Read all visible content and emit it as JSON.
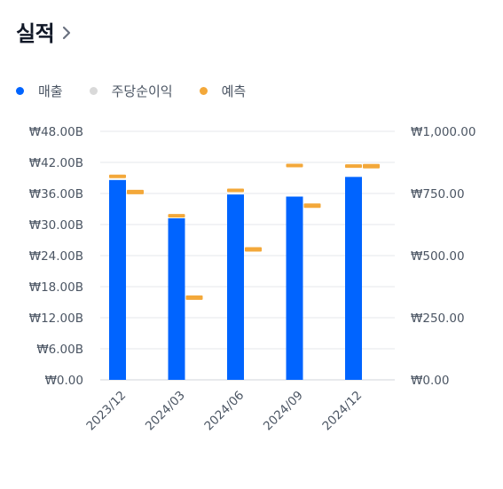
{
  "header": {
    "title": "실적"
  },
  "legend": [
    {
      "label": "매출",
      "color": "#0064ff"
    },
    {
      "label": "주당순이익",
      "color": "#d9d9d9"
    },
    {
      "label": "예측",
      "color": "#f3a83a"
    }
  ],
  "chart_data": {
    "type": "bar",
    "title": "",
    "categories": [
      "2023/12",
      "2024/03",
      "2024/06",
      "2024/09",
      "2024/12"
    ],
    "series": [
      {
        "name": "매출",
        "axis": "left",
        "values": [
          38.6,
          31.2,
          35.8,
          35.4,
          39.2
        ]
      },
      {
        "name": "예측",
        "axis": "left",
        "values": [
          39.3,
          31.7,
          36.6,
          41.4,
          41.3
        ]
      },
      {
        "name": "예측",
        "axis": "right",
        "values": [
          756.0,
          331.0,
          525.0,
          701.0,
          860.0
        ]
      }
    ],
    "left_axis": {
      "ylim": [
        0,
        48
      ],
      "ticks": [
        "₩48.00B",
        "₩42.00B",
        "₩36.00B",
        "₩30.00B",
        "₩24.00B",
        "₩18.00B",
        "₩12.00B",
        "₩6.00B",
        "₩0.00"
      ]
    },
    "right_axis": {
      "ylim": [
        0,
        1000
      ],
      "ticks": [
        "₩1,000.00",
        "₩750.00",
        "₩500.00",
        "₩250.00",
        "₩0.00"
      ]
    },
    "grid": true,
    "legend_position": "top-left"
  }
}
